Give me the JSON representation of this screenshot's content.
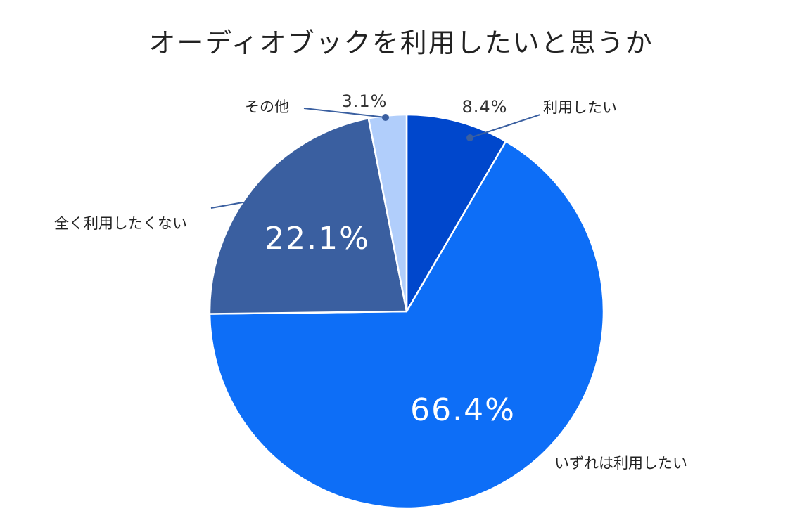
{
  "chart_data": {
    "type": "pie",
    "title": "オーディオブックを利用したいと思うか",
    "slices": [
      {
        "label": "利用したい",
        "value": 8.4,
        "value_label": "8.4%",
        "color": "#0047CC"
      },
      {
        "label": "いずれは利用したい",
        "value": 66.4,
        "value_label": "66.4%",
        "color": "#0D6EF7"
      },
      {
        "label": "全く利用したくない",
        "value": 22.1,
        "value_label": "22.1%",
        "color": "#3A5FA0"
      },
      {
        "label": "その他",
        "value": 3.1,
        "value_label": "3.1%",
        "color": "#B1CEFB"
      }
    ],
    "start_angle": "12 o'clock",
    "direction": "clockwise",
    "legend": "none"
  }
}
